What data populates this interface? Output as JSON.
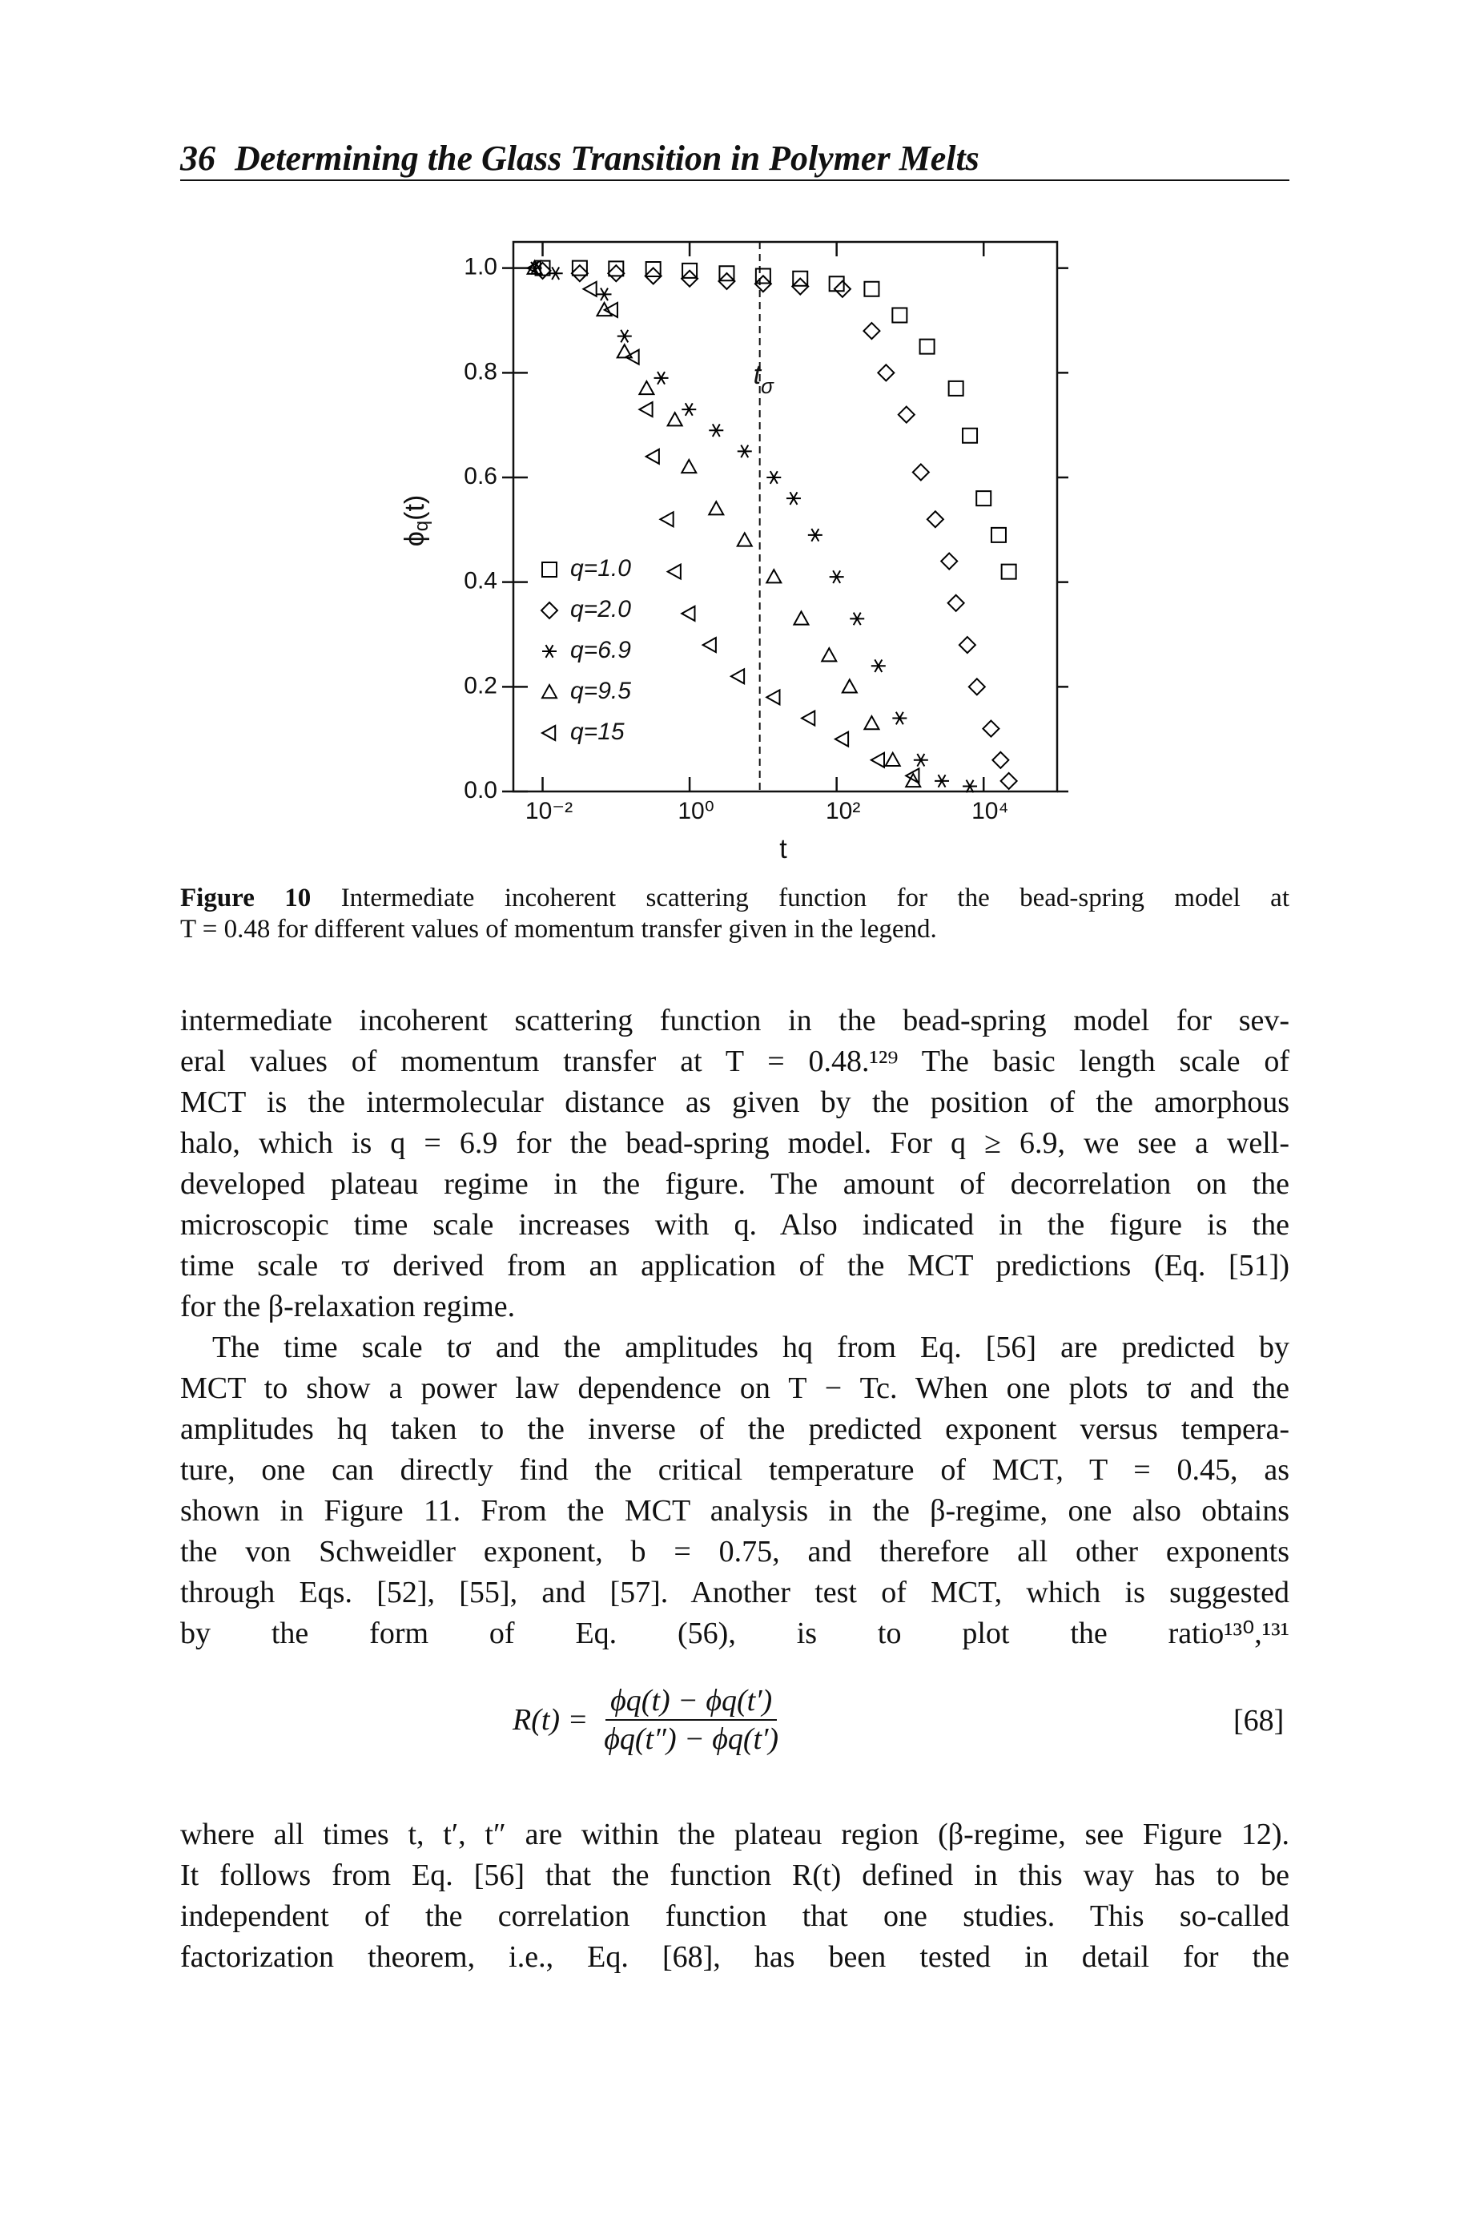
{
  "header": {
    "page_number": "36",
    "running_title": "Determining the Glass Transition in Polymer Melts"
  },
  "chart_data": {
    "type": "scatter",
    "xlabel": "t",
    "ylabel": {
      "symbol": "ϕ",
      "subscript": "q",
      "argument": "(t)"
    },
    "xscale": "log",
    "xlim": [
      0.004,
      100000
    ],
    "ylim": [
      0,
      1.05
    ],
    "xticks": [
      {
        "value": 0.01,
        "label": "10⁻²"
      },
      {
        "value": 1,
        "label": "10⁰"
      },
      {
        "value": 100,
        "label": "10²"
      },
      {
        "value": 10000,
        "label": "10⁴"
      }
    ],
    "yticks": [
      {
        "value": 0,
        "label": "0.0"
      },
      0.2,
      0.4,
      0.6,
      0.8,
      {
        "value": 1,
        "label": "1.0"
      }
    ],
    "annotation": {
      "label": "t",
      "subscript": "σ",
      "x": 9
    },
    "series": [
      {
        "name": "q=1.0",
        "marker": "square",
        "color": "#000000",
        "x": [
          0.01,
          0.032,
          0.1,
          0.32,
          1,
          3.2,
          10,
          32,
          100,
          300,
          720,
          1700,
          4200,
          6500,
          10000,
          16000,
          22000
        ],
        "values": [
          1.0,
          1.0,
          0.999,
          0.998,
          0.995,
          0.99,
          0.985,
          0.98,
          0.97,
          0.96,
          0.91,
          0.85,
          0.77,
          0.68,
          0.56,
          0.49,
          0.42
        ]
      },
      {
        "name": "q=2.0",
        "marker": "diamond",
        "color": "#000000",
        "x": [
          0.01,
          0.032,
          0.1,
          0.32,
          1,
          3.2,
          10,
          32,
          120,
          300,
          470,
          890,
          1400,
          2200,
          3400,
          4200,
          6000,
          8100,
          12600,
          17000,
          22000
        ],
        "values": [
          0.995,
          0.99,
          0.99,
          0.985,
          0.98,
          0.975,
          0.97,
          0.965,
          0.96,
          0.88,
          0.8,
          0.72,
          0.61,
          0.52,
          0.44,
          0.36,
          0.28,
          0.2,
          0.12,
          0.06,
          0.02
        ]
      },
      {
        "name": "q=6.9",
        "marker": "star",
        "color": "#000000",
        "x": [
          0.0078,
          0.015,
          0.069,
          0.13,
          0.41,
          0.98,
          2.3,
          5.6,
          14,
          26,
          51,
          100,
          190,
          370,
          720,
          1400,
          2700,
          6500
        ],
        "values": [
          1.0,
          0.99,
          0.95,
          0.87,
          0.79,
          0.73,
          0.69,
          0.65,
          0.6,
          0.56,
          0.49,
          0.41,
          0.33,
          0.24,
          0.14,
          0.06,
          0.02,
          0.01
        ]
      },
      {
        "name": "q=9.5",
        "marker": "triangle",
        "color": "#000000",
        "x": [
          0.0078,
          0.069,
          0.13,
          0.26,
          0.63,
          0.98,
          2.3,
          5.6,
          14,
          33,
          79,
          150,
          300,
          580,
          1100
        ],
        "values": [
          1.0,
          0.92,
          0.84,
          0.77,
          0.71,
          0.62,
          0.54,
          0.48,
          0.41,
          0.33,
          0.26,
          0.2,
          0.13,
          0.06,
          0.02
        ]
      },
      {
        "name": "q=15",
        "marker": "triangle-left",
        "color": "#000000",
        "x": [
          0.0078,
          0.045,
          0.087,
          0.17,
          0.26,
          0.32,
          0.5,
          0.63,
          0.98,
          1.9,
          4.6,
          14,
          42,
          120,
          370,
          1100
        ],
        "values": [
          1.0,
          0.96,
          0.92,
          0.83,
          0.73,
          0.64,
          0.52,
          0.42,
          0.34,
          0.28,
          0.22,
          0.18,
          0.14,
          0.1,
          0.06,
          0.03
        ]
      }
    ]
  },
  "caption": {
    "label": "Figure 10",
    "lines": [
      "Intermediate incoherent scattering function for the bead-spring model at",
      "T = 0.48 for different values of momentum transfer given in the legend."
    ]
  },
  "body": {
    "paragraphs": [
      {
        "lines": [
          "intermediate incoherent scattering function in the bead-spring model for sev-",
          "eral values of momentum transfer at T = 0.48.¹²⁹ The basic length scale of",
          "MCT is the intermolecular distance as given by the position of the amorphous",
          "halo, which is q = 6.9 for the bead-spring model. For q ≥ 6.9, we see a well-",
          "developed plateau regime in the figure. The amount of decorrelation on the",
          "microscopic time scale increases with q. Also indicated in the figure is the",
          "time scale τσ derived from an application of the MCT predictions (Eq. [51])",
          "for the β-relaxation regime."
        ]
      },
      {
        "lines": [
          "The time scale tσ and the amplitudes hq from Eq. [56] are predicted by",
          "MCT to show a power law dependence on T − Tc. When one plots tσ and the",
          "amplitudes hq taken to the inverse of the predicted exponent versus tempera-",
          "ture, one can directly find the critical temperature of MCT, T = 0.45, as",
          "shown in Figure 11. From the MCT analysis in the β-regime, one also obtains",
          "the von Schweidler exponent, b = 0.75, and therefore all other exponents",
          "through Eqs. [52], [55], and [57]. Another test of MCT, which is suggested",
          "by the form of Eq. (56), is to plot the ratio¹³⁰,¹³¹"
        ]
      },
      {
        "lines": [
          "where all times t, t′, t″ are within the plateau region (β-regime, see Figure 12).",
          "It follows from Eq. [56] that the function R(t) defined in this way has to be",
          "independent of the correlation function that one studies. This so-called",
          "factorization theorem, i.e., Eq. [68], has been tested in detail for the"
        ]
      }
    ]
  },
  "equation": {
    "lhs": "R(t) =",
    "numerator": "ϕq(t) − ϕq(t′)",
    "denominator": "ϕq(t″) − ϕq(t′)",
    "number": "[68]"
  }
}
